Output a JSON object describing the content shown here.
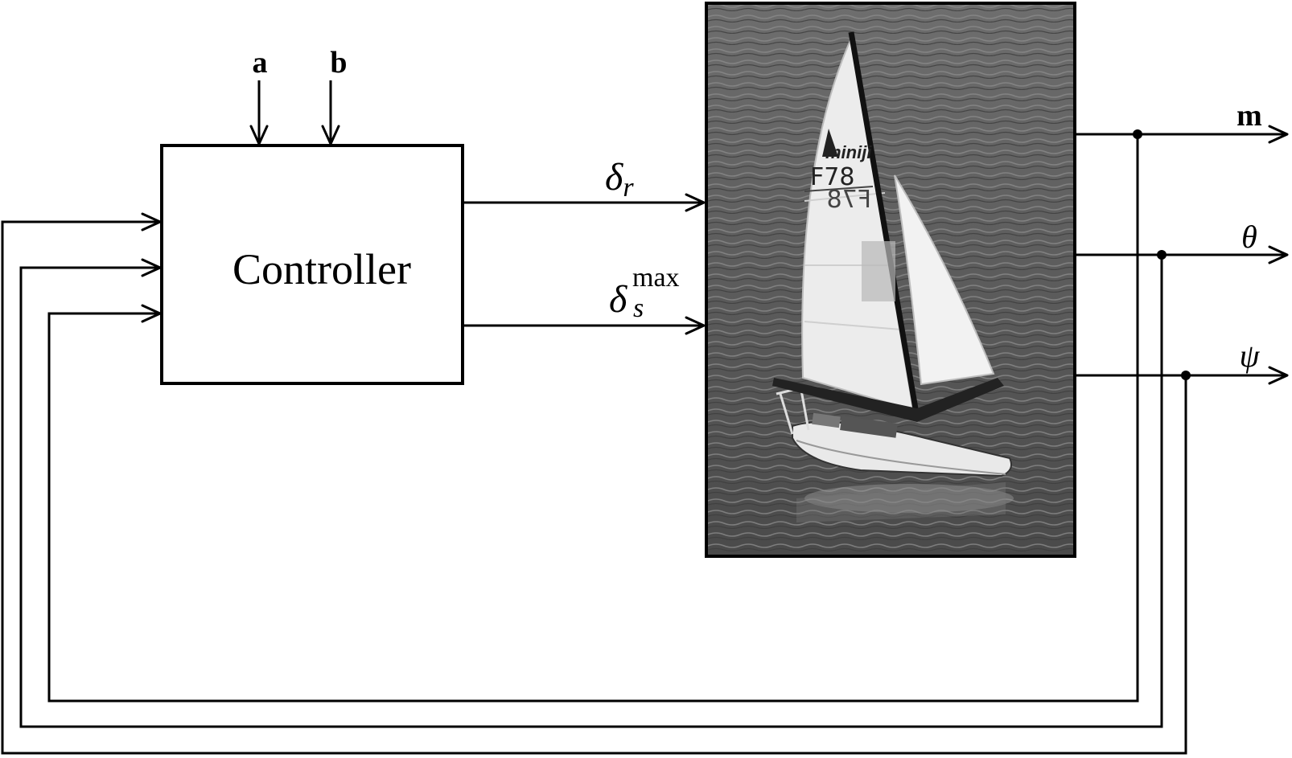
{
  "controller": {
    "label": "Controller"
  },
  "inputs_top": [
    "a",
    "b"
  ],
  "control_signals": {
    "rudder": {
      "symbol": "δ",
      "subscript": "r"
    },
    "sail": {
      "symbol": "δ",
      "subscript": "s",
      "superscript": "max"
    }
  },
  "outputs": [
    {
      "label": "m"
    },
    {
      "label": "θ"
    },
    {
      "label": "ψ"
    }
  ],
  "boat_photo": {
    "sail_number": "F78",
    "sail_number_mirrored": "F78",
    "brand_logo_text": "miniji"
  }
}
